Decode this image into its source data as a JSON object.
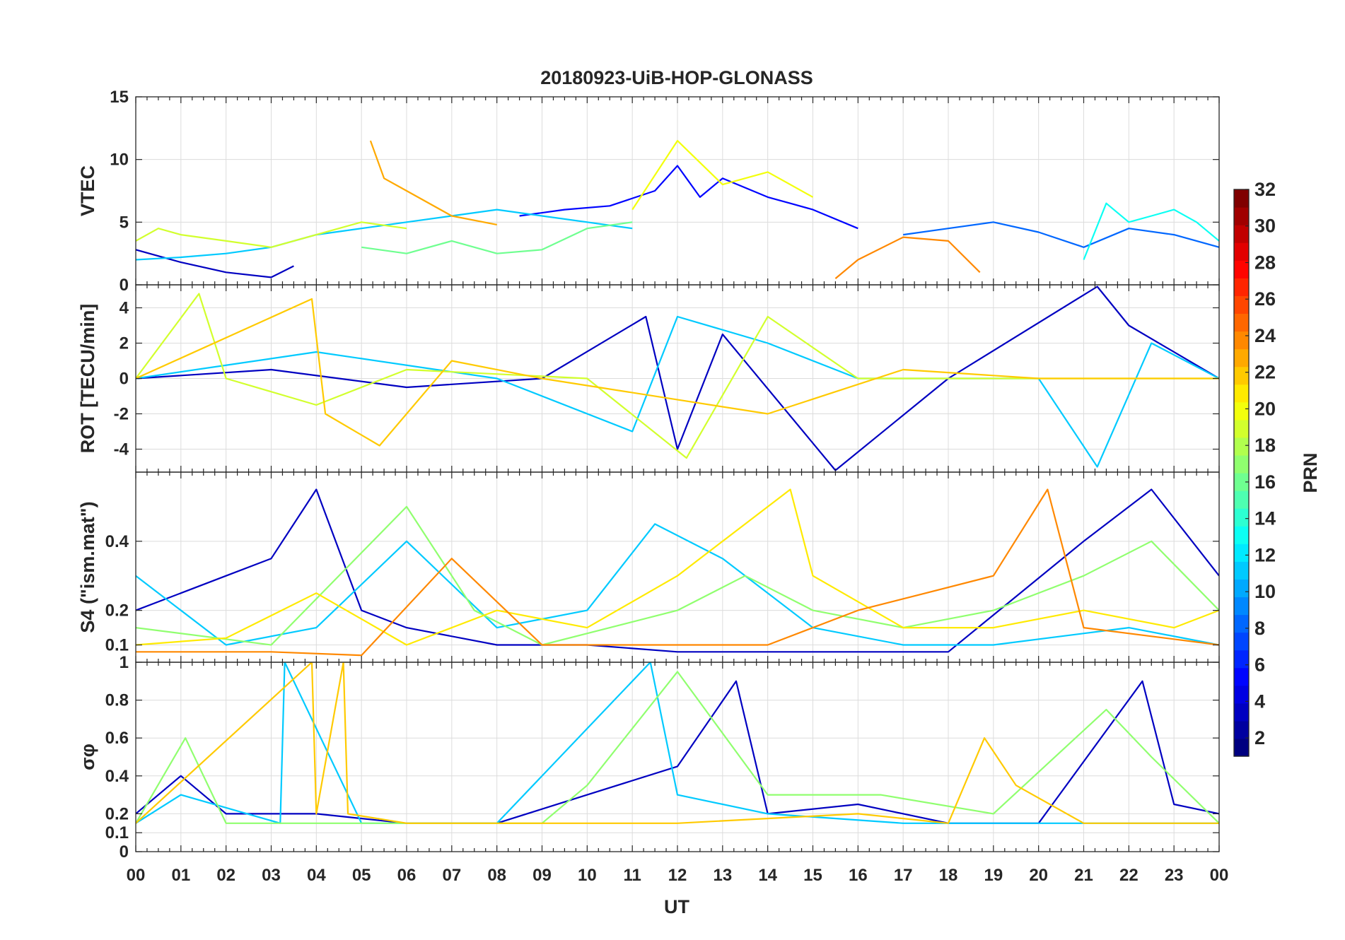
{
  "chart_data": {
    "type": "line",
    "title": "20180923-UiB-HOP-GLONASS",
    "xlabel": "UT",
    "x_ticks": [
      "00",
      "01",
      "02",
      "03",
      "04",
      "05",
      "06",
      "07",
      "08",
      "09",
      "10",
      "11",
      "12",
      "13",
      "14",
      "15",
      "16",
      "17",
      "18",
      "19",
      "20",
      "21",
      "22",
      "23",
      "00"
    ],
    "xlim_hours": [
      0,
      24
    ],
    "grid": true,
    "panels": [
      {
        "id": "vtec",
        "ylabel": "VTEC",
        "ylim": [
          0,
          15
        ],
        "yticks": [
          0,
          5,
          10,
          15
        ],
        "ytick_labels": [
          "0",
          "5",
          "10",
          "15"
        ],
        "series": [
          {
            "prn": 3,
            "hours": [
              0.0,
              1.0,
              2.0,
              3.0,
              3.5
            ],
            "values": [
              2.8,
              1.8,
              1.0,
              0.6,
              1.5
            ]
          },
          {
            "prn": 5,
            "hours": [
              8.5,
              9.5,
              10.5,
              11.5,
              12.0,
              12.5,
              13.0,
              14.0,
              14.5,
              15.0,
              16.0
            ],
            "values": [
              5.5,
              6.0,
              6.3,
              7.5,
              9.5,
              7.0,
              8.5,
              7.0,
              6.5,
              6.0,
              4.5
            ]
          },
          {
            "prn": 8,
            "hours": [
              17.0,
              18.0,
              19.0,
              20.0,
              21.0,
              22.0,
              23.0,
              24.0
            ],
            "values": [
              4.0,
              4.5,
              5.0,
              4.2,
              3.0,
              4.5,
              4.0,
              3.0
            ]
          },
          {
            "prn": 11,
            "hours": [
              0.0,
              1.0,
              2.0,
              3.0,
              4.0,
              5.0,
              6.0,
              7.0,
              8.0,
              9.0,
              10.0,
              11.0
            ],
            "values": [
              2.0,
              2.2,
              2.5,
              3.0,
              4.0,
              4.5,
              5.0,
              5.5,
              6.0,
              5.5,
              5.0,
              4.5
            ]
          },
          {
            "prn": 13,
            "hours": [
              21.0,
              21.5,
              22.0,
              22.5,
              23.0,
              23.5,
              24.0
            ],
            "values": [
              2.0,
              6.5,
              5.0,
              5.5,
              6.0,
              5.0,
              3.5
            ]
          },
          {
            "prn": 16,
            "hours": [
              5.0,
              6.0,
              7.0,
              8.0,
              9.0,
              10.0,
              11.0
            ],
            "values": [
              3.0,
              2.5,
              3.5,
              2.5,
              2.8,
              4.5,
              5.0
            ]
          },
          {
            "prn": 19,
            "hours": [
              0.0,
              0.5,
              1.0,
              2.0,
              3.0,
              4.0,
              5.0,
              6.0
            ],
            "values": [
              3.5,
              4.5,
              4.0,
              3.5,
              3.0,
              4.0,
              5.0,
              4.5
            ]
          },
          {
            "prn": 20,
            "hours": [
              11.0,
              12.0,
              13.0,
              14.0,
              15.0
            ],
            "values": [
              6.0,
              11.5,
              8.0,
              9.0,
              7.0
            ]
          },
          {
            "prn": 23,
            "hours": [
              5.2,
              5.5,
              6.0,
              7.0,
              8.0
            ],
            "values": [
              11.5,
              8.5,
              7.5,
              5.5,
              4.8
            ]
          },
          {
            "prn": 24,
            "hours": [
              15.5,
              16.0,
              17.0,
              18.0,
              18.7
            ],
            "values": [
              0.5,
              2.0,
              3.8,
              3.5,
              1.0
            ]
          }
        ]
      },
      {
        "id": "rot",
        "ylabel": "ROT [TECU/min]",
        "ylim": [
          -5.3,
          5.3
        ],
        "yticks": [
          -4,
          -2,
          0,
          2,
          4
        ],
        "ytick_labels": [
          "-4",
          "-2",
          "0",
          "2",
          "4"
        ],
        "series": [
          {
            "prn": 3,
            "hours": [
              0.0,
              3.0,
              6.0,
              9.0,
              11.3,
              12.0,
              13.0,
              15.5,
              18.0,
              21.3,
              22.0,
              24.0
            ],
            "values": [
              0,
              0.5,
              -0.5,
              0,
              3.5,
              -4.0,
              2.5,
              -5.2,
              0,
              5.2,
              3.0,
              0
            ]
          },
          {
            "prn": 11,
            "hours": [
              0.0,
              4.0,
              8.0,
              11.0,
              12.0,
              14.0,
              16.0,
              20.0,
              21.3,
              22.5,
              24.0
            ],
            "values": [
              0,
              1.5,
              0,
              -3.0,
              3.5,
              2.0,
              0,
              0,
              -5.0,
              2.0,
              0
            ]
          },
          {
            "prn": 19,
            "hours": [
              0.0,
              1.4,
              2.0,
              4.0,
              6.0,
              10.0,
              12.2,
              14.0,
              16.0,
              24.0
            ],
            "values": [
              0,
              4.8,
              0,
              -1.5,
              0.5,
              0,
              -4.5,
              3.5,
              0,
              0
            ]
          },
          {
            "prn": 22,
            "hours": [
              0.0,
              3.9,
              4.2,
              5.4,
              7.0,
              9.0,
              14.0,
              17.0,
              20.0,
              24.0
            ],
            "values": [
              0,
              4.5,
              -2.0,
              -3.8,
              1.0,
              0,
              -2.0,
              0.5,
              0,
              0
            ]
          }
        ]
      },
      {
        "id": "s4",
        "ylabel": "S4 (\"ism.mat\")",
        "ylim": [
          0.05,
          0.6
        ],
        "yticks": [
          0.1,
          0.2,
          0.4
        ],
        "ytick_labels": [
          "0.1",
          "0.2",
          "0.4"
        ],
        "series": [
          {
            "prn": 3,
            "hours": [
              0.0,
              1.0,
              2.0,
              3.0,
              4.0,
              5.0,
              6.0,
              8.0,
              10.0,
              12.0,
              14.0,
              16.0,
              18.0,
              21.0,
              22.5,
              24.0
            ],
            "values": [
              0.2,
              0.25,
              0.3,
              0.35,
              0.55,
              0.2,
              0.15,
              0.1,
              0.1,
              0.08,
              0.08,
              0.08,
              0.08,
              0.4,
              0.55,
              0.3
            ]
          },
          {
            "prn": 11,
            "hours": [
              0.0,
              2.0,
              4.0,
              6.0,
              8.0,
              10.0,
              11.5,
              13.0,
              15.0,
              17.0,
              19.0,
              22.0,
              24.0
            ],
            "values": [
              0.3,
              0.1,
              0.15,
              0.4,
              0.15,
              0.2,
              0.45,
              0.35,
              0.15,
              0.1,
              0.1,
              0.15,
              0.1
            ]
          },
          {
            "prn": 17,
            "hours": [
              0.0,
              3.0,
              6.0,
              7.5,
              9.0,
              10.5,
              12.0,
              13.5,
              15.0,
              17.0,
              19.0,
              21.0,
              22.5,
              24.0
            ],
            "values": [
              0.15,
              0.1,
              0.5,
              0.2,
              0.1,
              0.15,
              0.2,
              0.3,
              0.2,
              0.15,
              0.2,
              0.3,
              0.4,
              0.2
            ]
          },
          {
            "prn": 21,
            "hours": [
              0.0,
              2.0,
              4.0,
              6.0,
              8.0,
              10.0,
              12.0,
              14.5,
              15.0,
              17.0,
              19.0,
              21.0,
              23.0,
              24.0
            ],
            "values": [
              0.1,
              0.12,
              0.25,
              0.1,
              0.2,
              0.15,
              0.3,
              0.55,
              0.3,
              0.15,
              0.15,
              0.2,
              0.15,
              0.2
            ]
          },
          {
            "prn": 24,
            "hours": [
              0.0,
              3.0,
              5.0,
              7.0,
              9.0,
              12.0,
              14.0,
              16.0,
              17.5,
              19.0,
              20.2,
              21.0,
              24.0
            ],
            "values": [
              0.08,
              0.08,
              0.07,
              0.35,
              0.1,
              0.1,
              0.1,
              0.2,
              0.25,
              0.3,
              0.55,
              0.15,
              0.1
            ]
          }
        ]
      },
      {
        "id": "sigma",
        "ylabel": "σφ",
        "ylim": [
          0,
          1
        ],
        "yticks": [
          0,
          0.1,
          0.2,
          0.4,
          0.6,
          0.8,
          1
        ],
        "ytick_labels": [
          "0",
          "0.1",
          "0.2",
          "0.4",
          "0.6",
          "0.8",
          "1"
        ],
        "series": [
          {
            "prn": 3,
            "hours": [
              0.0,
              1.0,
              2.0,
              4.0,
              6.0,
              8.0,
              10.0,
              12.0,
              13.3,
              14.0,
              16.0,
              18.0,
              20.0,
              22.3,
              23.0,
              24.0
            ],
            "values": [
              0.2,
              0.4,
              0.2,
              0.2,
              0.15,
              0.15,
              0.3,
              0.45,
              0.9,
              0.2,
              0.25,
              0.15,
              0.15,
              0.9,
              0.25,
              0.2
            ]
          },
          {
            "prn": 11,
            "hours": [
              0.0,
              1.0,
              3.2,
              3.3,
              5.0,
              8.0,
              11.4,
              12.0,
              14.0,
              17.0,
              20.0,
              24.0
            ],
            "values": [
              0.15,
              0.3,
              0.15,
              1.0,
              0.15,
              0.15,
              1.0,
              0.3,
              0.2,
              0.15,
              0.15,
              0.15
            ]
          },
          {
            "prn": 17,
            "hours": [
              0.0,
              1.1,
              2.0,
              5.0,
              9.0,
              10.0,
              12.0,
              14.0,
              16.5,
              19.0,
              21.5,
              22.5,
              24.0
            ],
            "values": [
              0.15,
              0.6,
              0.15,
              0.15,
              0.15,
              0.35,
              0.95,
              0.3,
              0.3,
              0.2,
              0.75,
              0.5,
              0.15
            ]
          },
          {
            "prn": 22,
            "hours": [
              0.0,
              3.9,
              4.0,
              4.6,
              4.7,
              6.0,
              9.0,
              12.0,
              16.0,
              18.0,
              18.8,
              19.5,
              21.0,
              24.0
            ],
            "values": [
              0.15,
              1.0,
              0.2,
              1.0,
              0.2,
              0.15,
              0.15,
              0.15,
              0.2,
              0.15,
              0.6,
              0.35,
              0.15,
              0.15
            ]
          }
        ]
      }
    ],
    "colorbar": {
      "label": "PRN",
      "range": [
        1,
        32
      ],
      "ticks": [
        2,
        4,
        6,
        8,
        10,
        12,
        14,
        16,
        18,
        20,
        22,
        24,
        26,
        28,
        30,
        32
      ],
      "colormap": "jet"
    }
  }
}
